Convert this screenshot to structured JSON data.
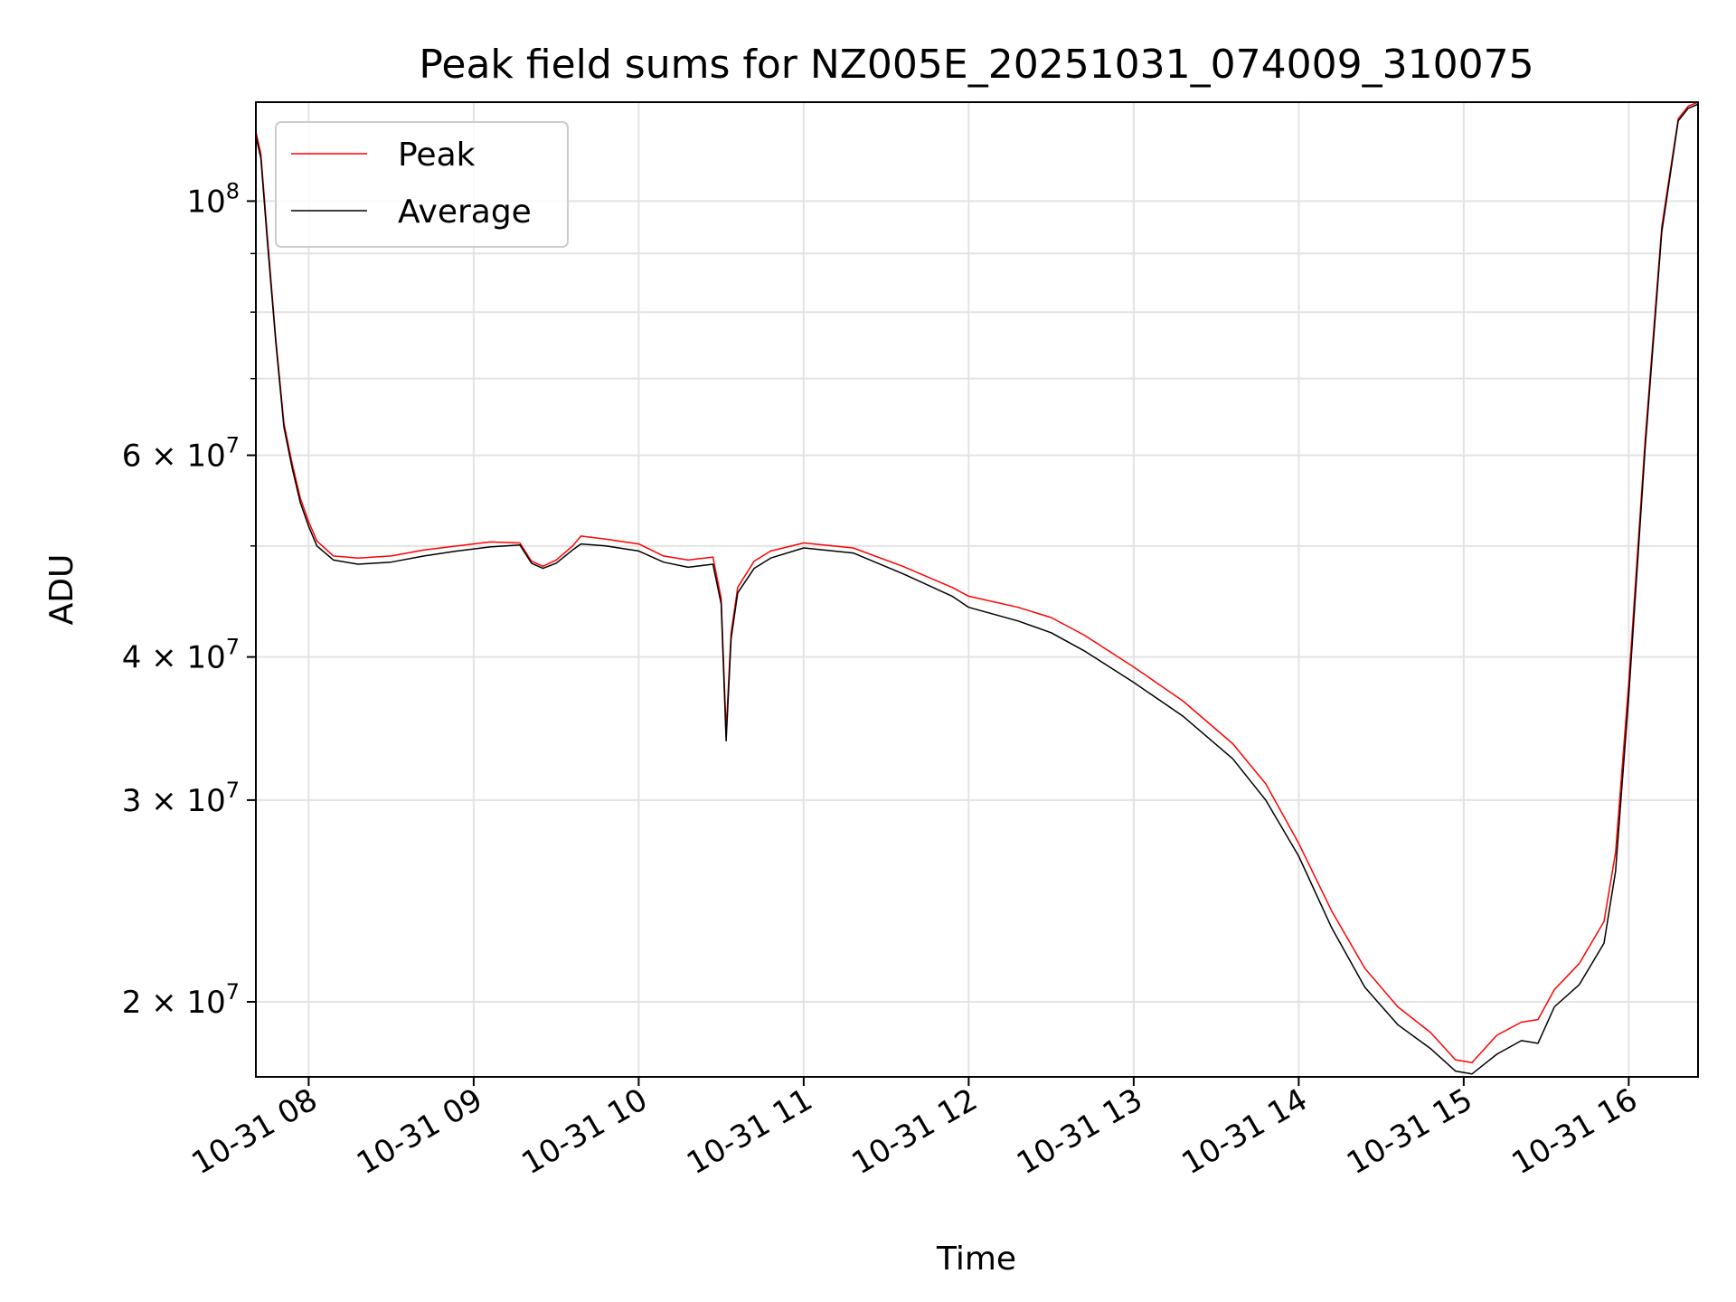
{
  "chart_data": {
    "type": "line",
    "title": "Peak field sums for NZ005E_20251031_074009_310075",
    "xlabel": "Time",
    "ylabel": "ADU",
    "yscale": "log",
    "xlim": [
      7.68,
      16.42
    ],
    "ylim": [
      17200000,
      122000000
    ],
    "grid": true,
    "legend_position": "top-left",
    "x_ticks": [
      {
        "value": 8,
        "label": "10-31 08"
      },
      {
        "value": 9,
        "label": "10-31 09"
      },
      {
        "value": 10,
        "label": "10-31 10"
      },
      {
        "value": 11,
        "label": "10-31 11"
      },
      {
        "value": 12,
        "label": "10-31 12"
      },
      {
        "value": 13,
        "label": "10-31 13"
      },
      {
        "value": 14,
        "label": "10-31 14"
      },
      {
        "value": 15,
        "label": "10-31 15"
      },
      {
        "value": 16,
        "label": "10-31 16"
      }
    ],
    "y_ticks": [
      {
        "value": 20000000,
        "mantissa": "2",
        "exponent": "7"
      },
      {
        "value": 30000000,
        "mantissa": "3",
        "exponent": "7"
      },
      {
        "value": 40000000,
        "mantissa": "4",
        "exponent": "7"
      },
      {
        "value": 60000000,
        "mantissa": "6",
        "exponent": "7"
      },
      {
        "value": 100000000,
        "mantissa": "",
        "exponent": "8"
      }
    ],
    "y_minor_ticks": [
      50000000,
      70000000,
      80000000,
      90000000
    ],
    "series": [
      {
        "name": "Peak",
        "color": "#ff0000",
        "note": "tracks Average closely with frequent upward spikes of roughly 1-6%",
        "x": [
          7.68,
          7.71,
          7.75,
          7.8,
          7.85,
          7.9,
          7.95,
          8.0,
          8.05,
          8.15,
          8.3,
          8.5,
          8.7,
          8.9,
          9.1,
          9.28,
          9.35,
          9.42,
          9.5,
          9.6,
          9.65,
          9.8,
          10.0,
          10.15,
          10.3,
          10.45,
          10.5,
          10.53,
          10.56,
          10.6,
          10.7,
          10.8,
          11.0,
          11.3,
          11.6,
          11.9,
          12.0,
          12.3,
          12.5,
          12.7,
          13.0,
          13.3,
          13.6,
          13.8,
          14.0,
          14.2,
          14.4,
          14.6,
          14.8,
          14.95,
          15.05,
          15.2,
          15.35,
          15.45,
          15.55,
          15.7,
          15.85,
          15.92,
          16.0,
          16.1,
          16.2,
          16.3,
          16.36,
          16.42
        ],
        "values": [
          115000000,
          110000000,
          93000000,
          76000000,
          64000000,
          59000000,
          55000000,
          52500000,
          50500000,
          49000000,
          48800000,
          49000000,
          49600000,
          50000000,
          50400000,
          50300000,
          48500000,
          48000000,
          48600000,
          50000000,
          51000000,
          50700000,
          50200000,
          49000000,
          48600000,
          48900000,
          45000000,
          34500000,
          42000000,
          46000000,
          48500000,
          49500000,
          50300000,
          49800000,
          48000000,
          46000000,
          45200000,
          44200000,
          43300000,
          41800000,
          39200000,
          36600000,
          33600000,
          31000000,
          27500000,
          24000000,
          21400000,
          19800000,
          18800000,
          17800000,
          17700000,
          18700000,
          19200000,
          19300000,
          20500000,
          21600000,
          23500000,
          27000000,
          38000000,
          62000000,
          95000000,
          118000000,
          121000000,
          122000000
        ]
      },
      {
        "name": "Average",
        "color": "#000000",
        "x": [
          7.68,
          7.71,
          7.75,
          7.8,
          7.85,
          7.9,
          7.95,
          8.0,
          8.05,
          8.15,
          8.3,
          8.5,
          8.7,
          8.9,
          9.1,
          9.28,
          9.35,
          9.42,
          9.5,
          9.6,
          9.65,
          9.8,
          10.0,
          10.15,
          10.3,
          10.45,
          10.5,
          10.53,
          10.56,
          10.6,
          10.7,
          10.8,
          11.0,
          11.3,
          11.6,
          11.9,
          12.0,
          12.3,
          12.5,
          12.7,
          13.0,
          13.3,
          13.6,
          13.8,
          14.0,
          14.2,
          14.4,
          14.6,
          14.8,
          14.95,
          15.05,
          15.2,
          15.35,
          15.45,
          15.55,
          15.7,
          15.85,
          15.92,
          16.0,
          16.1,
          16.2,
          16.3,
          16.36,
          16.42
        ],
        "values": [
          114000000,
          109000000,
          92000000,
          75500000,
          63500000,
          58500000,
          54500000,
          52000000,
          50000000,
          48600000,
          48200000,
          48400000,
          49000000,
          49500000,
          49900000,
          50100000,
          48300000,
          47800000,
          48300000,
          49600000,
          50200000,
          50000000,
          49500000,
          48400000,
          47900000,
          48200000,
          44500000,
          33800000,
          41500000,
          45500000,
          47800000,
          48800000,
          49800000,
          49300000,
          47300000,
          45200000,
          44200000,
          43000000,
          42000000,
          40500000,
          38000000,
          35500000,
          32600000,
          30000000,
          26800000,
          23200000,
          20600000,
          19100000,
          18200000,
          17400000,
          17300000,
          18000000,
          18500000,
          18400000,
          19800000,
          20700000,
          22500000,
          26000000,
          37000000,
          61000000,
          94000000,
          117500000,
          120500000,
          121500000
        ]
      }
    ]
  }
}
